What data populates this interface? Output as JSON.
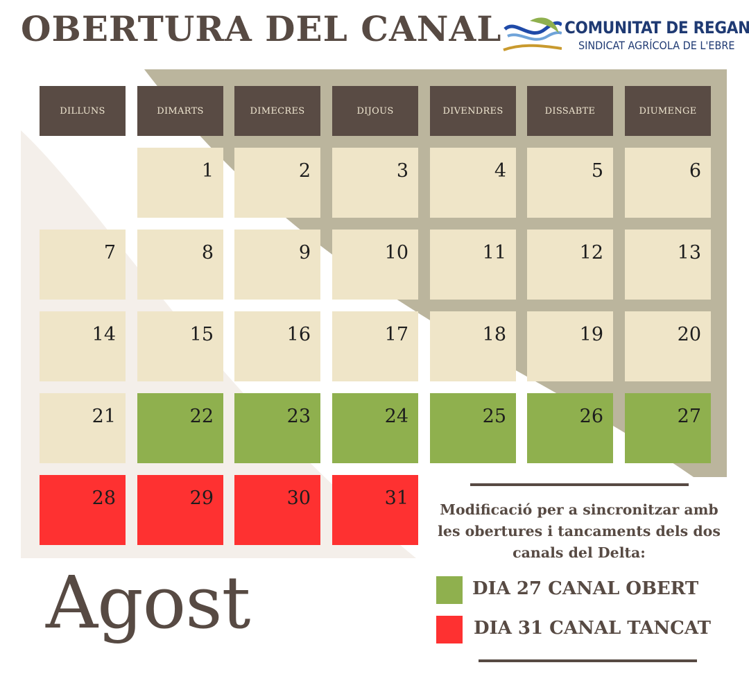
{
  "title": "OBERTURA DEL CANAL",
  "logo": {
    "name": "COMUNITAT DE REGANTS",
    "subtitle": "SINDICAT AGRÍCOLA DE L'EBRE",
    "colors": {
      "wave_blue": "#1f4aa8",
      "wave_light": "#6fa3d9",
      "wave_green": "#8fb04e",
      "wave_gold": "#c99a2e"
    }
  },
  "calendar": {
    "weekdays": [
      "DILLUNS",
      "DIMARTS",
      "DIMECRES",
      "DIJOUS",
      "DIVENDRES",
      "DISSABTE",
      "DIUMENGE"
    ],
    "first_weekday_offset": 1,
    "days": [
      {
        "n": "1",
        "status": "normal"
      },
      {
        "n": "2",
        "status": "normal"
      },
      {
        "n": "3",
        "status": "normal"
      },
      {
        "n": "4",
        "status": "normal"
      },
      {
        "n": "5",
        "status": "normal"
      },
      {
        "n": "6",
        "status": "normal"
      },
      {
        "n": "7",
        "status": "normal"
      },
      {
        "n": "8",
        "status": "normal"
      },
      {
        "n": "9",
        "status": "normal"
      },
      {
        "n": "10",
        "status": "normal"
      },
      {
        "n": "11",
        "status": "normal"
      },
      {
        "n": "12",
        "status": "normal"
      },
      {
        "n": "13",
        "status": "normal"
      },
      {
        "n": "14",
        "status": "normal"
      },
      {
        "n": "15",
        "status": "normal"
      },
      {
        "n": "16",
        "status": "normal"
      },
      {
        "n": "17",
        "status": "normal"
      },
      {
        "n": "18",
        "status": "normal"
      },
      {
        "n": "19",
        "status": "normal"
      },
      {
        "n": "20",
        "status": "normal"
      },
      {
        "n": "21",
        "status": "normal"
      },
      {
        "n": "22",
        "status": "open"
      },
      {
        "n": "23",
        "status": "open"
      },
      {
        "n": "24",
        "status": "open"
      },
      {
        "n": "25",
        "status": "open"
      },
      {
        "n": "26",
        "status": "open"
      },
      {
        "n": "27",
        "status": "open"
      },
      {
        "n": "28",
        "status": "closed"
      },
      {
        "n": "29",
        "status": "closed"
      },
      {
        "n": "30",
        "status": "closed"
      },
      {
        "n": "31",
        "status": "closed"
      }
    ]
  },
  "month": "Agost",
  "note": "Modificació per a sincronitzar amb les obertures i tancaments dels dos canals del Delta:",
  "legend": [
    {
      "label": "DIA 27 CANAL OBERT",
      "color": "#8fb04e"
    },
    {
      "label": "DIA 31 CANAL TANCAT",
      "color": "#fe3131"
    }
  ],
  "colors": {
    "header_bg": "#594b44",
    "cell_bg": "#efe5c8",
    "open": "#8fb04e",
    "closed": "#fe3131",
    "taupe": "#bbb59d",
    "cream_bg": "#f4efea",
    "text": "#574a43"
  }
}
